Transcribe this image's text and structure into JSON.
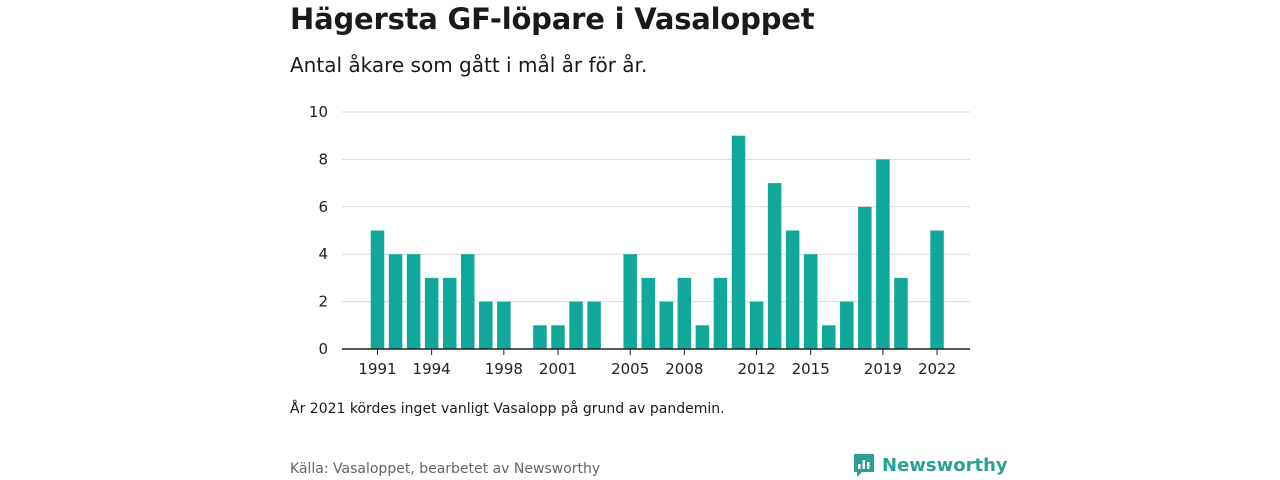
{
  "title": "Hägersta GF-löpare i Vasaloppet",
  "subtitle": "Antal åkare som gått i mål år för år.",
  "note": "År 2021 kördes inget vanligt Vasalopp på grund av pandemin.",
  "source": "Källa: Vasaloppet, bearbetet av Newsworthy",
  "brand": {
    "name": "Newsworthy",
    "icon": "newsworthy-logo-icon"
  },
  "colors": {
    "bar": "#0fa89b",
    "grid": "#d9d9d9",
    "axis": "#222222",
    "brand": "#2aa197"
  },
  "chart_data": {
    "type": "bar",
    "categories": [
      1991,
      1992,
      1993,
      1994,
      1995,
      1996,
      1997,
      1998,
      1999,
      2000,
      2001,
      2002,
      2003,
      2004,
      2005,
      2006,
      2007,
      2008,
      2009,
      2010,
      2011,
      2012,
      2013,
      2014,
      2015,
      2016,
      2017,
      2018,
      2019,
      2020,
      2021,
      2022
    ],
    "values": [
      5,
      4,
      4,
      3,
      3,
      4,
      2,
      2,
      0,
      1,
      1,
      2,
      2,
      0,
      4,
      3,
      2,
      3,
      1,
      3,
      9,
      2,
      7,
      5,
      4,
      1,
      2,
      6,
      8,
      3,
      0,
      5
    ],
    "xticks": [
      1991,
      1994,
      1998,
      2001,
      2005,
      2008,
      2012,
      2015,
      2019,
      2022
    ],
    "yticks": [
      0,
      2,
      4,
      6,
      8,
      10
    ],
    "ylim": [
      0,
      10
    ],
    "grid": true,
    "xlabel": "",
    "ylabel": ""
  }
}
